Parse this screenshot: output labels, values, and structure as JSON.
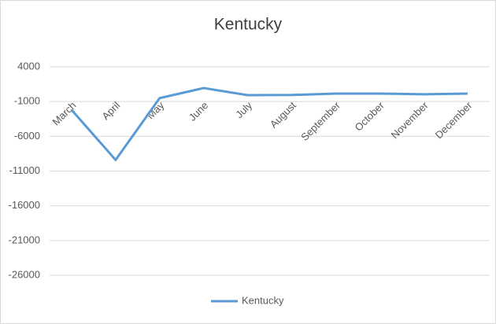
{
  "chart_data": {
    "type": "line",
    "title": "Kentucky",
    "categories": [
      "March",
      "April",
      "May",
      "June",
      "July",
      "August",
      "September",
      "October",
      "November",
      "December"
    ],
    "series": [
      {
        "name": "Kentucky",
        "color": "#5b9bd5",
        "values": [
          -2200,
          -9400,
          -500,
          950,
          -80,
          -50,
          150,
          150,
          50,
          150
        ]
      }
    ],
    "ylim": [
      -26000,
      4000
    ],
    "yticks": [
      4000,
      -1000,
      -6000,
      -11000,
      -16000,
      -21000,
      -26000
    ],
    "grid": true,
    "legend": "bottom"
  }
}
